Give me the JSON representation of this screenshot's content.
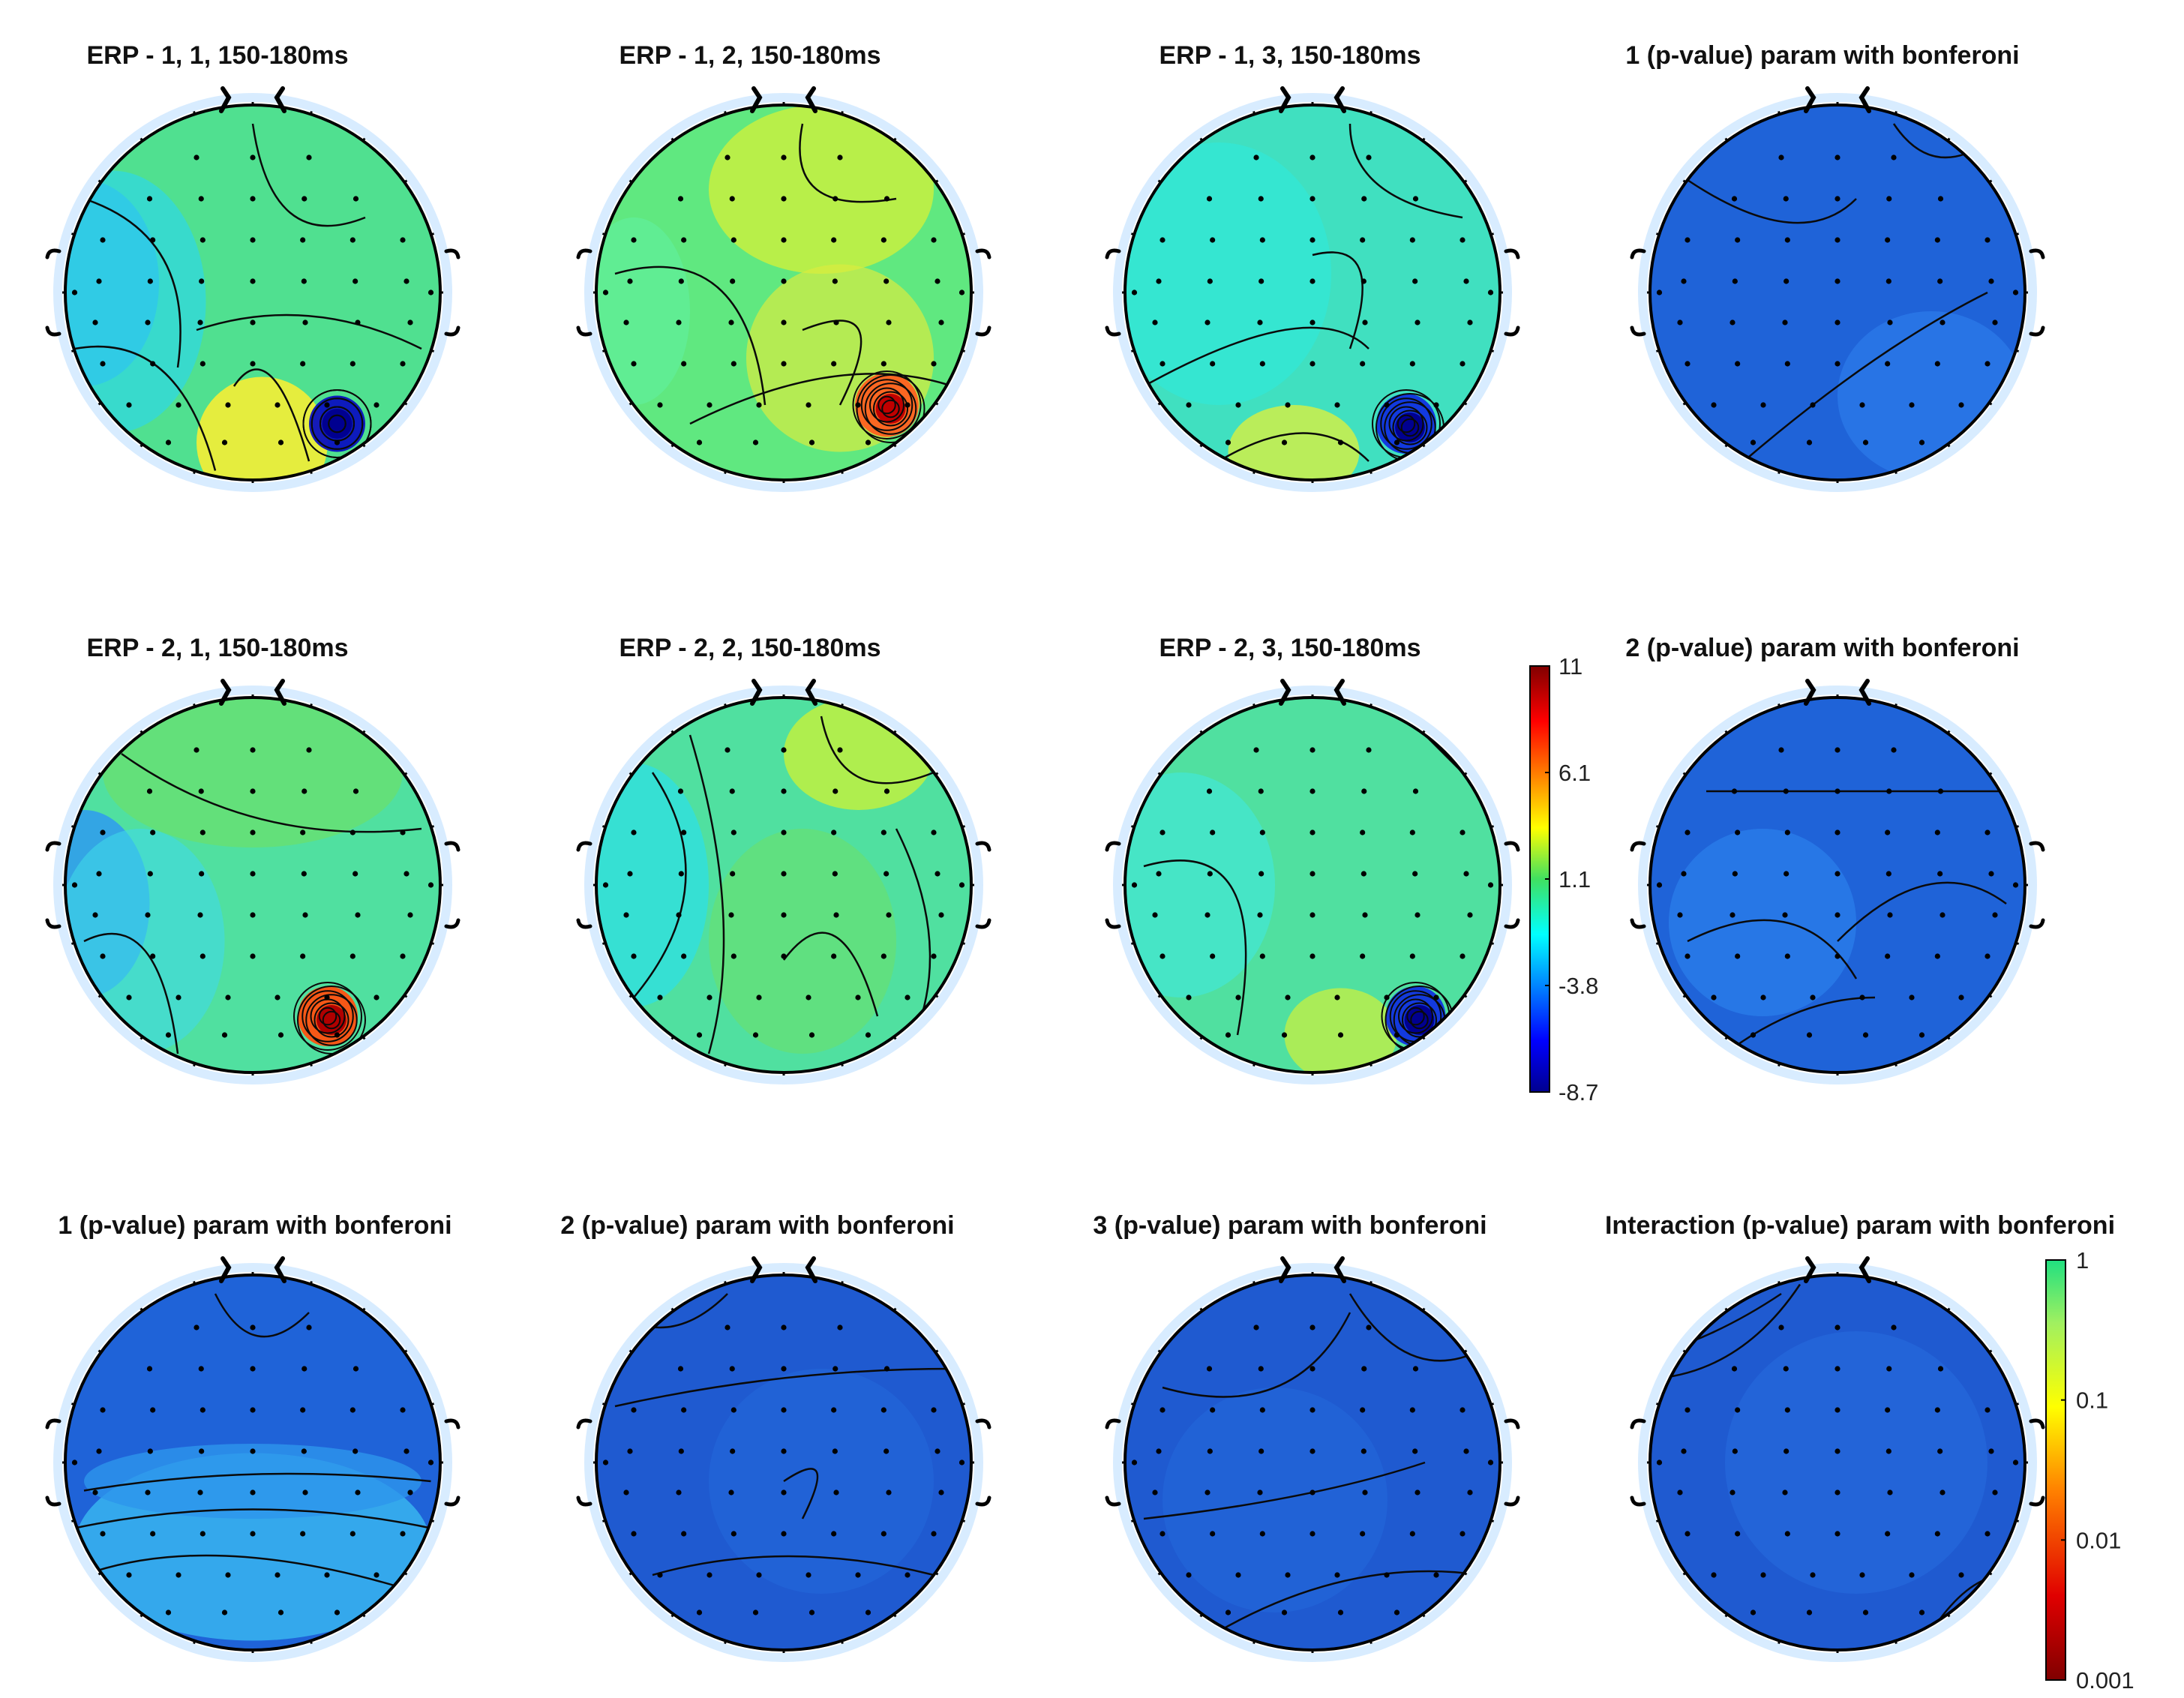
{
  "figure": {
    "title": "ERP topography maps, 150-180ms, with Bonferroni-corrected p-value maps"
  },
  "chart_data": {
    "type": "heatmap",
    "subtype": "eeg-topoplot-grid",
    "rows": 3,
    "cols": 4,
    "panels": [
      {
        "title": "ERP - 1, 1, 150-180ms",
        "kind": "erp",
        "summary": "green field, negative (cyan/blue) left-temporal region, strong negative focus at right-posterior, mild positive midline-posterior"
      },
      {
        "title": "ERP - 1, 2, 150-180ms",
        "kind": "erp",
        "summary": "mostly green-yellow, positive frontal-right, strong positive focus at right-posterior"
      },
      {
        "title": "ERP - 1, 3, 150-180ms",
        "kind": "erp",
        "summary": "green/cyan field, strong negative focus at right-posterior, mild positive posterior"
      },
      {
        "title": "1 (p-value) param with bonferoni",
        "kind": "pvalue",
        "summary": "uniformly non-significant (blue)"
      },
      {
        "title": "ERP - 2, 1, 150-180ms",
        "kind": "erp",
        "summary": "green frontal, cyan/blue left-temporal, strong positive focus at right-posterior"
      },
      {
        "title": "ERP - 2, 2, 150-180ms",
        "kind": "erp",
        "summary": "green field, cyan left, mild positive frontal-right"
      },
      {
        "title": "ERP - 2, 3, 150-180ms",
        "kind": "erp",
        "summary": "green/cyan field, strong negative focus at right-posterior, mild positive posterior"
      },
      {
        "title": "2 (p-value) param with bonferoni",
        "kind": "pvalue",
        "summary": "uniformly non-significant (blue)"
      },
      {
        "title": "1 (p-value) param with bonferoni",
        "kind": "pvalue",
        "summary": "blue field with lighter cyan band across central/posterior region"
      },
      {
        "title": "2 (p-value) param with bonferoni",
        "kind": "pvalue",
        "summary": "uniformly non-significant (blue)"
      },
      {
        "title": "3 (p-value) param with bonferoni",
        "kind": "pvalue",
        "summary": "uniformly non-significant (blue)"
      },
      {
        "title": "Interaction (p-value) param with bonferoni",
        "kind": "pvalue",
        "summary": "uniformly non-significant (blue)"
      }
    ],
    "colorbars": [
      {
        "name": "erp-amplitude",
        "scale": "linear",
        "range": [
          -8.7,
          11
        ],
        "ticks": [
          "11",
          "6.1",
          "1.1",
          "-3.8",
          "-8.7"
        ],
        "colormap": "jet"
      },
      {
        "name": "p-value",
        "scale": "log",
        "range": [
          0.001,
          1
        ],
        "ticks": [
          "1",
          "0.1",
          "0.01",
          "0.001"
        ],
        "colormap": "green-yellow-red"
      }
    ]
  }
}
